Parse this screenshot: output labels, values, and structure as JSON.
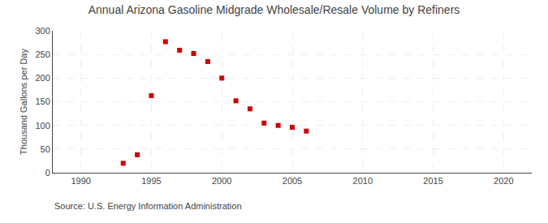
{
  "chart_data": {
    "type": "scatter",
    "title": "Annual Arizona Gasoline Midgrade Wholesale/Resale Volume by Refiners",
    "ylabel": "Thousand Gallons per Day",
    "annotations": [
      "Source: U.S. Energy Information Administration"
    ],
    "x": [
      1993,
      1994,
      1995,
      1996,
      1997,
      1998,
      1999,
      2000,
      2001,
      2002,
      2003,
      2004,
      2005,
      2006
    ],
    "values": [
      20,
      38,
      163,
      277,
      259,
      252,
      235,
      200,
      152,
      135,
      105,
      100,
      96,
      88
    ],
    "color": "#cc0000",
    "marker": "square",
    "xlim": [
      1988,
      2022
    ],
    "ylim": [
      0,
      300
    ],
    "xticks": [
      1990,
      1995,
      2000,
      2005,
      2010,
      2015,
      2020
    ],
    "yticks": [
      0,
      50,
      100,
      150,
      200,
      250,
      300
    ],
    "grid": true
  }
}
